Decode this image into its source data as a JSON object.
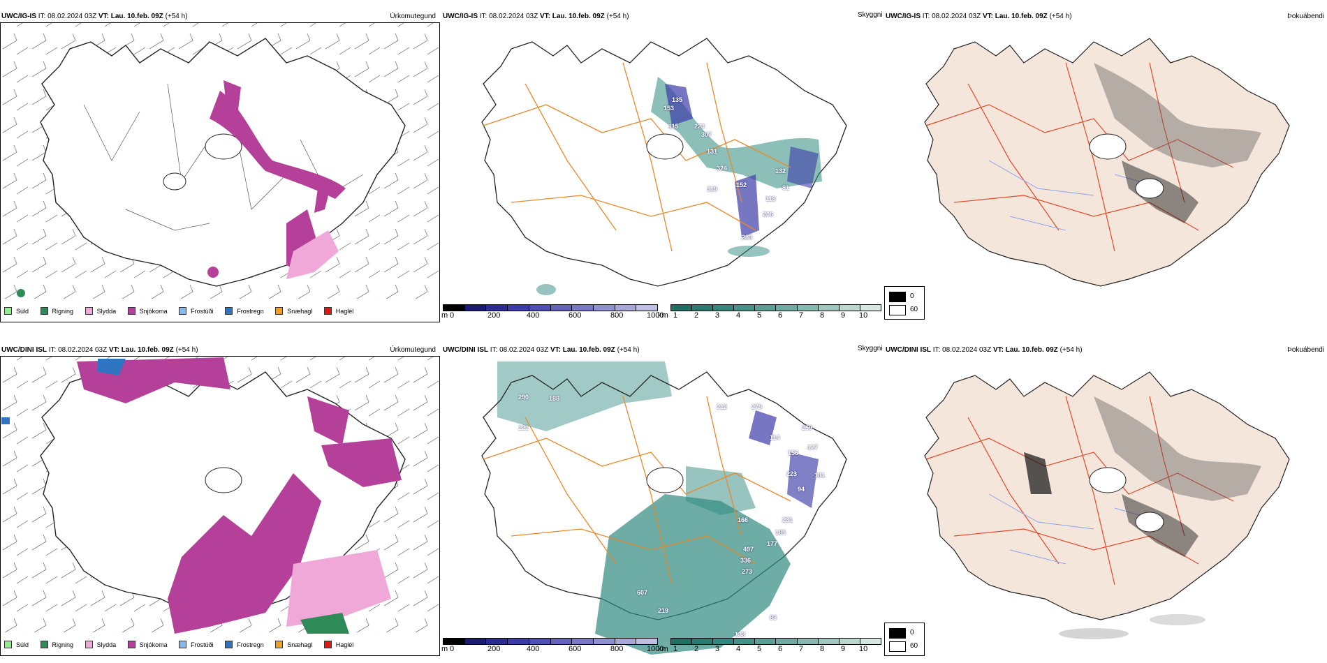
{
  "rows": [
    {
      "model": "UWC/IG-IS",
      "it_label": "IT:",
      "it": "08.02.2024 03Z",
      "vt_label": "VT:",
      "vt": "Lau. 10.feb. 09Z",
      "lead": "(+54 h)",
      "labels": [
        "153",
        "135",
        "115",
        "223",
        "307",
        "131",
        "324",
        "152",
        "369",
        "81",
        "132",
        "118",
        "206",
        "283"
      ]
    },
    {
      "model": "UWC/DINI ISL",
      "it_label": "IT:",
      "it": "08.02.2024 03Z",
      "vt_label": "VT:",
      "vt": "Lau. 10.feb. 09Z",
      "lead": "(+54 h)",
      "labels": [
        "290",
        "188",
        "121",
        "212",
        "279",
        "259",
        "114",
        "156",
        "127",
        "181",
        "223",
        "94",
        "166",
        "231",
        "185",
        "177",
        "497",
        "336",
        "273",
        "607",
        "219",
        "83",
        "133"
      ]
    }
  ],
  "panel_titles": {
    "precip": "Úrkomutegund",
    "vis": "Skyggni",
    "fog": "Þokuábendi"
  },
  "legend": [
    {
      "label": "Súld",
      "color": "#90ee90"
    },
    {
      "label": "Rigning",
      "color": "#2e8b57"
    },
    {
      "label": "Slydda",
      "color": "#f0a8d8"
    },
    {
      "label": "Snjókoma",
      "color": "#b5409a"
    },
    {
      "label": "Frostúði",
      "color": "#87b8f0"
    },
    {
      "label": "Frostregn",
      "color": "#2f74c0"
    },
    {
      "label": "Snæhagl",
      "color": "#f0a020"
    },
    {
      "label": "Haglél",
      "color": "#e01818"
    }
  ],
  "cbar_m": {
    "unit": "m",
    "ticks": [
      "0",
      "200",
      "400",
      "600",
      "800",
      "1000"
    ],
    "colors": [
      "#000000",
      "#1a1a6e",
      "#2c2c90",
      "#3c3ca8",
      "#5050b4",
      "#6464bc",
      "#7878c4",
      "#9090cc",
      "#a8a8d8",
      "#c0c0e4"
    ]
  },
  "cbar_km": {
    "unit": "km",
    "ticks": [
      "1",
      "2",
      "3",
      "4",
      "5",
      "6",
      "7",
      "8",
      "9",
      "10"
    ],
    "colors": [
      "#1f6e66",
      "#2a7a72",
      "#35867e",
      "#46928a",
      "#5a9e96",
      "#70aaa2",
      "#88b8b0",
      "#a2c6c0",
      "#bcd6d0",
      "#d6e6e2"
    ]
  },
  "fog_key": {
    "v0": "0",
    "v60": "60"
  },
  "colors": {
    "sea": "#ffffff",
    "land_fog": "#f5e6dc",
    "roads_orange": "#e8892a",
    "roads_red": "#e04a2a",
    "rivers": "#8aa4ee",
    "teal": "#2f8a80"
  }
}
